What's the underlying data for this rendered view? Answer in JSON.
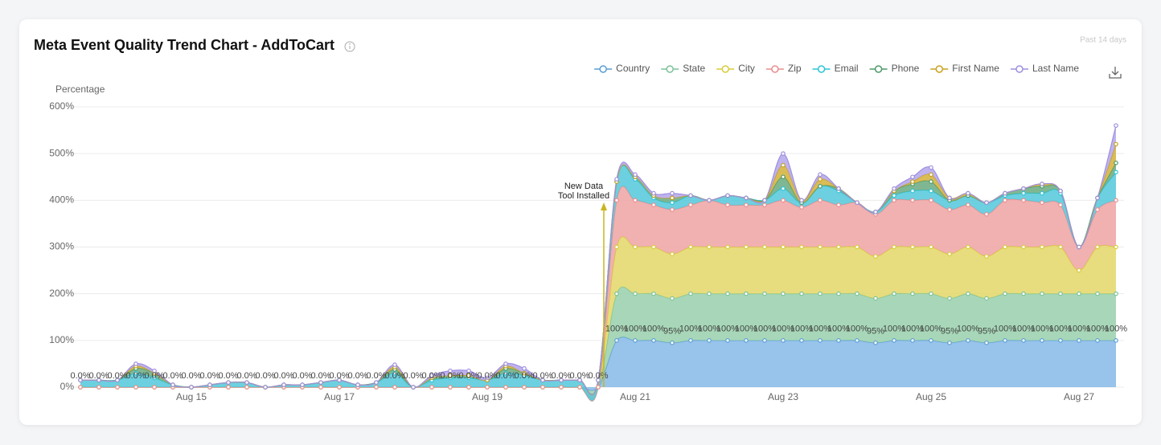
{
  "chart_data": {
    "type": "stacked_area",
    "title": "Meta Event Quality Trend Chart - AddToCart",
    "subtitle": "Past 14 days",
    "y_label": "Percentage",
    "legend": "top-right",
    "grid": true,
    "ylim": [
      0,
      600
    ],
    "yticks": [
      {
        "value": 0,
        "label": "0%"
      },
      {
        "value": 100,
        "label": "100%"
      },
      {
        "value": 200,
        "label": "200%"
      },
      {
        "value": 300,
        "label": "300%"
      },
      {
        "value": 400,
        "label": "400%"
      },
      {
        "value": 500,
        "label": "500%"
      },
      {
        "value": 600,
        "label": "600%"
      }
    ],
    "categories": [
      null,
      null,
      null,
      null,
      null,
      null,
      "Aug 15",
      null,
      null,
      null,
      null,
      null,
      null,
      null,
      "Aug 17",
      null,
      null,
      null,
      null,
      null,
      null,
      null,
      "Aug 19",
      null,
      null,
      null,
      null,
      null,
      null,
      null,
      "Aug 21",
      null,
      null,
      null,
      null,
      null,
      null,
      null,
      "Aug 23",
      null,
      null,
      null,
      null,
      null,
      null,
      null,
      "Aug 25",
      null,
      null,
      null,
      null,
      null,
      null,
      null,
      "Aug 27",
      null,
      null
    ],
    "annotation": {
      "text": [
        "New Data",
        "Tool Installed"
      ],
      "index": 28,
      "color": "#c9b520"
    },
    "series": [
      {
        "name": "Country",
        "color": "#5a9fd4",
        "fill": "#86b8e8",
        "values": [
          0,
          0,
          0,
          0,
          0,
          0,
          0,
          0,
          0,
          0,
          0,
          0,
          0,
          0,
          0,
          0,
          0,
          0,
          0,
          0,
          0,
          0,
          0,
          0,
          0,
          0,
          0,
          0,
          0,
          100,
          100,
          100,
          95,
          100,
          100,
          100,
          100,
          100,
          100,
          100,
          100,
          100,
          100,
          95,
          100,
          100,
          100,
          95,
          100,
          95,
          100,
          100,
          100,
          100,
          100,
          100,
          100
        ],
        "value_labels": [
          "0.0%",
          "0.0%",
          "0.0%",
          "0.0%",
          "0.0%",
          "0.0%",
          "0.0%",
          "0.0%",
          "0.0%",
          "0.0%",
          "0.0%",
          "0.0%",
          "0.0%",
          "0.0%",
          "0.0%",
          "0.0%",
          "0.0%",
          "0.0%",
          "0.0%",
          "0.0%",
          "0.0%",
          "0.0%",
          "0.0%",
          "0.0%",
          "0.0%",
          "0.0%",
          "0.0%",
          "0.0%",
          "0.0%",
          "100%",
          "100%",
          "100%",
          "95%",
          "100%",
          "100%",
          "100%",
          "100%",
          "100%",
          "100%",
          "100%",
          "100%",
          "100%",
          "100%",
          "95%",
          "100%",
          "100%",
          "100%",
          "95%",
          "100%",
          "95%",
          "100%",
          "100%",
          "100%",
          "100%",
          "100%",
          "100%",
          "100%"
        ]
      },
      {
        "name": "State",
        "color": "#7cc29a",
        "fill": "#98d0ac",
        "values": [
          0,
          0,
          0,
          0,
          0,
          0,
          0,
          0,
          0,
          0,
          0,
          0,
          0,
          0,
          0,
          0,
          0,
          0,
          0,
          0,
          0,
          0,
          0,
          0,
          0,
          0,
          0,
          0,
          0,
          100,
          100,
          100,
          95,
          100,
          100,
          100,
          100,
          100,
          100,
          100,
          100,
          100,
          100,
          95,
          100,
          100,
          100,
          95,
          100,
          95,
          100,
          100,
          100,
          100,
          100,
          100,
          100
        ]
      },
      {
        "name": "City",
        "color": "#d8cc3a",
        "fill": "#e3d767",
        "values": [
          0,
          0,
          0,
          0,
          0,
          0,
          0,
          0,
          0,
          0,
          0,
          0,
          0,
          0,
          0,
          0,
          0,
          0,
          0,
          0,
          0,
          0,
          0,
          0,
          0,
          0,
          0,
          0,
          0,
          100,
          100,
          100,
          95,
          100,
          100,
          100,
          100,
          100,
          100,
          100,
          100,
          100,
          100,
          90,
          100,
          100,
          100,
          95,
          100,
          90,
          100,
          100,
          100,
          100,
          50,
          100,
          100
        ]
      },
      {
        "name": "Zip",
        "color": "#e88e8e",
        "fill": "#eea3a3",
        "values": [
          0,
          0,
          0,
          0,
          0,
          0,
          0,
          0,
          0,
          0,
          0,
          0,
          0,
          0,
          0,
          0,
          0,
          0,
          0,
          0,
          0,
          0,
          0,
          0,
          0,
          0,
          0,
          0,
          0,
          100,
          100,
          90,
          95,
          90,
          100,
          90,
          90,
          90,
          100,
          85,
          100,
          90,
          95,
          90,
          100,
          100,
          100,
          95,
          90,
          90,
          100,
          100,
          95,
          90,
          50,
          80,
          100
        ]
      },
      {
        "name": "Email",
        "color": "#2ec4d6",
        "fill": "#52c8da",
        "values": [
          15,
          15,
          15,
          30,
          20,
          5,
          0,
          5,
          10,
          10,
          0,
          5,
          5,
          10,
          15,
          5,
          10,
          30,
          0,
          15,
          20,
          20,
          15,
          30,
          25,
          15,
          15,
          15,
          15,
          40,
          45,
          15,
          15,
          20,
          0,
          20,
          15,
          10,
          25,
          10,
          30,
          30,
          0,
          5,
          10,
          20,
          20,
          20,
          20,
          25,
          10,
          15,
          20,
          25,
          0,
          25,
          60
        ]
      },
      {
        "name": "Phone",
        "color": "#4e9a6a",
        "fill": "#6aaa80",
        "values": [
          0,
          0,
          0,
          10,
          10,
          0,
          0,
          0,
          0,
          0,
          0,
          0,
          0,
          0,
          0,
          0,
          0,
          8,
          0,
          5,
          5,
          5,
          0,
          10,
          5,
          0,
          0,
          0,
          0,
          0,
          5,
          5,
          10,
          0,
          0,
          0,
          0,
          0,
          25,
          0,
          0,
          5,
          0,
          0,
          10,
          15,
          20,
          0,
          0,
          0,
          5,
          10,
          15,
          5,
          0,
          0,
          20
        ]
      },
      {
        "name": "First Name",
        "color": "#c9a21e",
        "fill": "#d4b03a",
        "values": [
          0,
          0,
          0,
          5,
          0,
          0,
          0,
          0,
          0,
          0,
          0,
          0,
          0,
          0,
          0,
          0,
          0,
          5,
          0,
          0,
          0,
          0,
          0,
          5,
          0,
          0,
          0,
          0,
          0,
          0,
          0,
          0,
          0,
          0,
          0,
          0,
          0,
          0,
          25,
          5,
          15,
          0,
          0,
          0,
          0,
          5,
          15,
          5,
          5,
          0,
          0,
          0,
          5,
          0,
          0,
          0,
          40
        ]
      },
      {
        "name": "Last Name",
        "color": "#9f8fe0",
        "fill": "#b3a6ea",
        "values": [
          0,
          0,
          0,
          5,
          5,
          0,
          0,
          0,
          0,
          0,
          0,
          0,
          0,
          0,
          0,
          0,
          0,
          5,
          0,
          5,
          10,
          10,
          5,
          5,
          10,
          0,
          0,
          0,
          0,
          5,
          5,
          5,
          10,
          0,
          0,
          0,
          0,
          0,
          25,
          0,
          10,
          0,
          0,
          0,
          5,
          10,
          15,
          0,
          0,
          0,
          0,
          0,
          0,
          0,
          0,
          0,
          40
        ]
      }
    ]
  }
}
